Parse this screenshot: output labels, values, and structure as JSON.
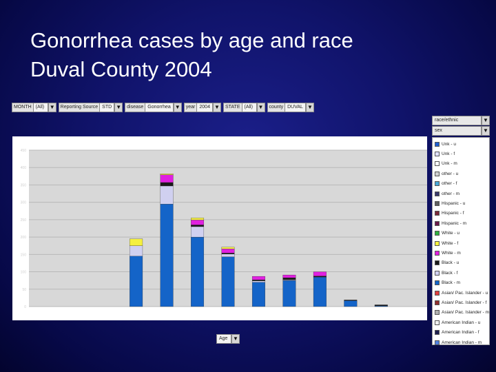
{
  "slide": {
    "title_line1": "Gonorrhea cases by age and race",
    "title_line2": "Duval County 2004"
  },
  "filters": [
    {
      "label": "MONTH",
      "value": "(All)"
    },
    {
      "label": "Reporting Source",
      "value": "STD"
    },
    {
      "label": "disease",
      "value": "Gonorrhea"
    },
    {
      "label": "year",
      "value": "2004"
    },
    {
      "label": "STATE",
      "value": "(All)"
    },
    {
      "label": "county",
      "value": "DUVAL"
    }
  ],
  "legend_header": {
    "field1": "race/ethnic",
    "field2": "sex"
  },
  "x_field": "Age",
  "colors": {
    "background": "#10136a",
    "plot_bg": "#d8d8d8",
    "gridline": "#b8b8b8"
  },
  "chart_data": {
    "type": "bar",
    "stacked": true,
    "grid": true,
    "legend_position": "right",
    "ylim": [
      0,
      450
    ],
    "yticks": [
      0,
      50,
      100,
      150,
      200,
      250,
      300,
      350,
      400,
      450
    ],
    "categories": [
      "",
      "",
      "",
      "",
      "",
      "",
      "",
      "",
      "",
      "",
      "",
      "",
      ""
    ],
    "series": [
      {
        "name": "Unk - u",
        "color": "#1f5fd0",
        "values": [
          0,
          0,
          0,
          0,
          0,
          0,
          0,
          0,
          0,
          0,
          0,
          0,
          0
        ]
      },
      {
        "name": "Unk - f",
        "color": "#e0e0ff",
        "values": [
          0,
          0,
          0,
          0,
          0,
          0,
          0,
          0,
          0,
          0,
          0,
          0,
          0
        ]
      },
      {
        "name": "Unk - m",
        "color": "#ffffff",
        "values": [
          0,
          0,
          0,
          0,
          0,
          0,
          0,
          0,
          0,
          0,
          0,
          0,
          0
        ]
      },
      {
        "name": "other - u",
        "color": "#d0d0d0",
        "values": [
          0,
          0,
          0,
          0,
          0,
          0,
          0,
          0,
          0,
          0,
          0,
          0,
          0
        ]
      },
      {
        "name": "other - f",
        "color": "#4aa8d8",
        "values": [
          0,
          0,
          0,
          0,
          0,
          0,
          0,
          0,
          0,
          0,
          0,
          0,
          0
        ]
      },
      {
        "name": "other - m",
        "color": "#3a3a6a",
        "values": [
          0,
          0,
          0,
          0,
          0,
          0,
          0,
          0,
          0,
          0,
          0,
          0,
          0
        ]
      },
      {
        "name": "Hispanic - u",
        "color": "#606060",
        "values": [
          0,
          0,
          0,
          0,
          0,
          0,
          0,
          0,
          0,
          0,
          0,
          0,
          0
        ]
      },
      {
        "name": "Hispanic - f",
        "color": "#7a2a3a",
        "values": [
          0,
          0,
          0,
          0,
          0,
          0,
          0,
          0,
          0,
          0,
          0,
          0,
          0
        ]
      },
      {
        "name": "Hispanic - m",
        "color": "#6a1a4a",
        "values": [
          0,
          0,
          0,
          0,
          0,
          0,
          0,
          0,
          0,
          0,
          0,
          0,
          0
        ]
      },
      {
        "name": "White - u",
        "color": "#30b040",
        "values": [
          0,
          0,
          0,
          0,
          0,
          0,
          0,
          0,
          0,
          0,
          0,
          0,
          0
        ]
      },
      {
        "name": "White - f",
        "color": "#f5f040",
        "values": [
          0,
          0,
          0,
          20,
          3,
          6,
          5,
          0,
          0,
          0,
          0,
          0,
          0
        ]
      },
      {
        "name": "White - m",
        "color": "#e020e0",
        "values": [
          0,
          0,
          0,
          0,
          22,
          14,
          12,
          10,
          8,
          12,
          0,
          0,
          0
        ]
      },
      {
        "name": "Black - u",
        "color": "#1a1a1a",
        "values": [
          0,
          0,
          0,
          0,
          10,
          5,
          3,
          3,
          6,
          3,
          2,
          3,
          0
        ]
      },
      {
        "name": "Black - f",
        "color": "#d0d0f0",
        "values": [
          0,
          0,
          0,
          30,
          52,
          30,
          8,
          4,
          2,
          0,
          0,
          0,
          0
        ]
      },
      {
        "name": "Black - m",
        "color": "#1464c8",
        "values": [
          0,
          0,
          0,
          145,
          295,
          200,
          143,
          70,
          75,
          85,
          17,
          2,
          0
        ]
      },
      {
        "name": "Asian/ Pac. Islander - u",
        "color": "#e04040",
        "values": [
          0,
          0,
          0,
          0,
          0,
          0,
          0,
          0,
          0,
          0,
          0,
          0,
          0
        ]
      },
      {
        "name": "Asian/ Pac. Islander - f",
        "color": "#903030",
        "values": [
          0,
          0,
          0,
          0,
          0,
          0,
          0,
          0,
          0,
          0,
          0,
          0,
          0
        ]
      },
      {
        "name": "Asian/ Pac. Islander - m",
        "color": "#b0b0b0",
        "values": [
          0,
          0,
          0,
          0,
          0,
          0,
          0,
          0,
          0,
          0,
          0,
          0,
          0
        ]
      },
      {
        "name": "American Indian - u",
        "color": "#f0f0f0",
        "values": [
          0,
          0,
          0,
          0,
          0,
          0,
          0,
          0,
          0,
          0,
          0,
          0,
          0
        ]
      },
      {
        "name": "American Indian - f",
        "color": "#202050",
        "values": [
          0,
          0,
          0,
          0,
          0,
          0,
          0,
          0,
          0,
          0,
          0,
          0,
          0
        ]
      },
      {
        "name": "American Indian - m",
        "color": "#5080e0",
        "values": [
          0,
          0,
          0,
          0,
          0,
          0,
          0,
          0,
          0,
          0,
          0,
          0,
          0
        ]
      }
    ]
  }
}
